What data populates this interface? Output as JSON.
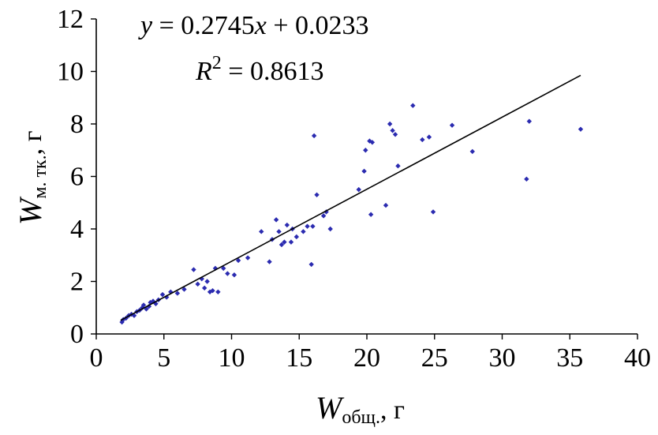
{
  "chart_data": {
    "type": "scatter",
    "title": "",
    "xlabel": {
      "symbol": "W",
      "subscript": "общ.",
      "unit": ", г"
    },
    "ylabel": {
      "symbol": "W",
      "subscript": "м. тк.",
      "unit": ", г"
    },
    "xlim": [
      0,
      40
    ],
    "ylim": [
      0,
      12
    ],
    "xticks": [
      0,
      5,
      10,
      15,
      20,
      25,
      30,
      35,
      40
    ],
    "yticks": [
      0,
      2,
      4,
      6,
      8,
      10,
      12
    ],
    "grid": false,
    "legend": "none",
    "marker_color": "#2b2bb0",
    "trendline": {
      "equation_parts": [
        "y",
        " = 0.2745",
        "x",
        " + 0.0233"
      ],
      "r2_parts": [
        "R",
        "2",
        " = 0.8613"
      ],
      "slope": 0.2745,
      "intercept": 0.0233,
      "x_range": [
        1.8,
        35.8
      ]
    },
    "series": [
      {
        "points": [
          [
            1.9,
            0.45
          ],
          [
            2.0,
            0.55
          ],
          [
            2.2,
            0.6
          ],
          [
            2.4,
            0.7
          ],
          [
            2.6,
            0.75
          ],
          [
            2.8,
            0.7
          ],
          [
            3.0,
            0.85
          ],
          [
            3.2,
            0.9
          ],
          [
            3.4,
            1.0
          ],
          [
            3.5,
            1.1
          ],
          [
            3.7,
            0.95
          ],
          [
            3.9,
            1.05
          ],
          [
            4.0,
            1.2
          ],
          [
            4.2,
            1.25
          ],
          [
            4.4,
            1.15
          ],
          [
            4.6,
            1.3
          ],
          [
            4.9,
            1.5
          ],
          [
            5.2,
            1.4
          ],
          [
            5.5,
            1.6
          ],
          [
            6.0,
            1.55
          ],
          [
            6.5,
            1.7
          ],
          [
            7.2,
            2.45
          ],
          [
            7.5,
            1.9
          ],
          [
            7.8,
            2.1
          ],
          [
            8.0,
            1.75
          ],
          [
            8.2,
            2.0
          ],
          [
            8.4,
            1.6
          ],
          [
            8.6,
            1.65
          ],
          [
            8.8,
            2.5
          ],
          [
            9.0,
            1.6
          ],
          [
            9.4,
            2.5
          ],
          [
            9.7,
            2.3
          ],
          [
            10.2,
            2.25
          ],
          [
            10.5,
            2.8
          ],
          [
            11.2,
            2.9
          ],
          [
            12.2,
            3.9
          ],
          [
            12.8,
            2.75
          ],
          [
            13.0,
            3.6
          ],
          [
            13.3,
            4.35
          ],
          [
            13.5,
            3.9
          ],
          [
            13.7,
            3.4
          ],
          [
            13.9,
            3.5
          ],
          [
            14.1,
            4.15
          ],
          [
            14.4,
            3.5
          ],
          [
            14.5,
            4.0
          ],
          [
            14.8,
            3.7
          ],
          [
            15.3,
            3.9
          ],
          [
            15.6,
            4.1
          ],
          [
            15.9,
            2.65
          ],
          [
            16.0,
            4.1
          ],
          [
            16.1,
            7.55
          ],
          [
            16.3,
            5.3
          ],
          [
            16.8,
            4.5
          ],
          [
            17.0,
            4.65
          ],
          [
            17.3,
            4.0
          ],
          [
            19.4,
            5.5
          ],
          [
            19.8,
            6.2
          ],
          [
            19.9,
            7.0
          ],
          [
            20.2,
            7.35
          ],
          [
            20.3,
            4.55
          ],
          [
            20.4,
            7.3
          ],
          [
            21.4,
            4.9
          ],
          [
            21.7,
            8.0
          ],
          [
            21.9,
            7.75
          ],
          [
            22.1,
            7.6
          ],
          [
            22.3,
            6.4
          ],
          [
            23.4,
            8.7
          ],
          [
            24.1,
            7.4
          ],
          [
            24.6,
            7.5
          ],
          [
            24.9,
            4.65
          ],
          [
            26.3,
            7.95
          ],
          [
            27.8,
            6.95
          ],
          [
            31.8,
            5.9
          ],
          [
            32.0,
            8.1
          ],
          [
            35.8,
            7.8
          ]
        ]
      }
    ]
  }
}
